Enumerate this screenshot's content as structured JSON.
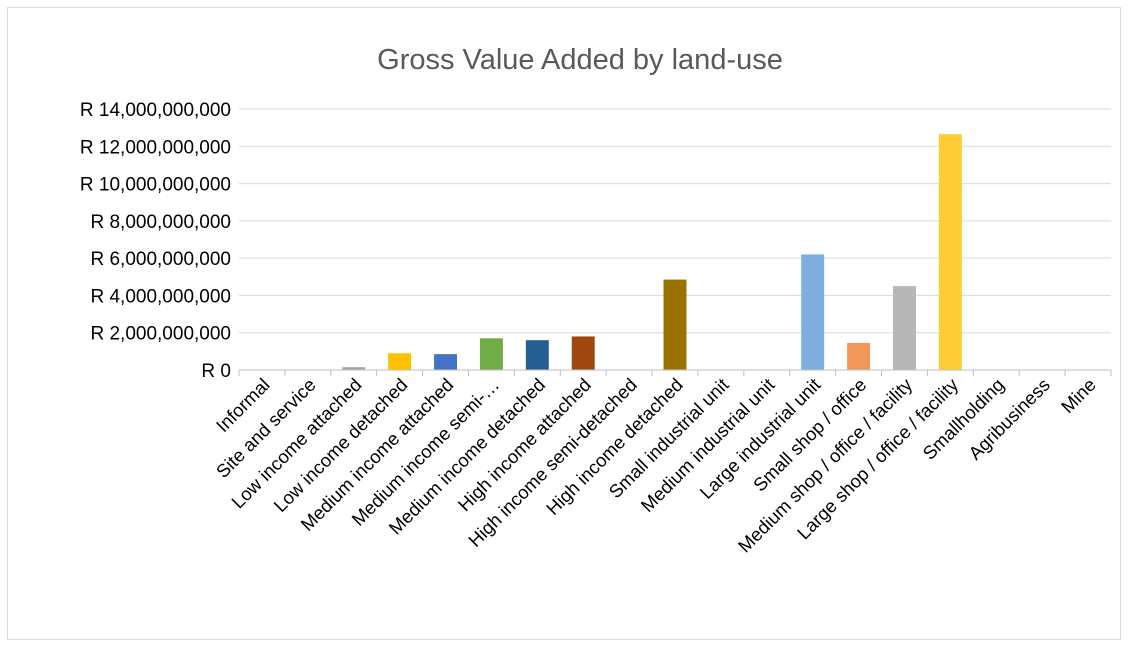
{
  "chart_data": {
    "type": "bar",
    "title": "Gross Value Added by land-use",
    "xlabel": "",
    "ylabel": "",
    "ylim": [
      0,
      14000000000
    ],
    "y_ticks": [
      0,
      2000000000,
      4000000000,
      6000000000,
      8000000000,
      10000000000,
      12000000000,
      14000000000
    ],
    "y_tick_labels": [
      "R 0",
      "R 2,000,000,000",
      "R 4,000,000,000",
      "R 6,000,000,000",
      "R 8,000,000,000",
      "R 10,000,000,000",
      "R 12,000,000,000",
      "R 14,000,000,000"
    ],
    "grid": true,
    "legend": "none",
    "categories": [
      "Informal",
      "Site and service",
      "Low income attached",
      "Low income detached",
      "Medium income attached",
      "Medium income semi-…",
      "Medium income detached",
      "High income attached",
      "High income semi-detached",
      "High income detached",
      "Small industrial unit",
      "Medium industrial unit",
      "Large industrial unit",
      "Small shop / office",
      "Medium shop / office / facility",
      "Large shop / office / facility",
      "Smallholding",
      "Agribusiness",
      "Mine"
    ],
    "values": [
      0,
      20000000,
      150000000,
      900000000,
      850000000,
      1700000000,
      1600000000,
      1800000000,
      0,
      4850000000,
      0,
      0,
      6200000000,
      1450000000,
      4500000000,
      12650000000,
      0,
      0,
      0
    ],
    "colors": [
      "#a5a5a5",
      "#ffc000",
      "#a5a5a5",
      "#ffc000",
      "#4472c4",
      "#70ad47",
      "#255e91",
      "#9e480e",
      "#636363",
      "#997300",
      "#264478",
      "#43682b",
      "#7cafdd",
      "#f1975a",
      "#b7b7b7",
      "#ffcd33",
      "#698ed0",
      "#8cc168",
      "#327dc2"
    ]
  }
}
